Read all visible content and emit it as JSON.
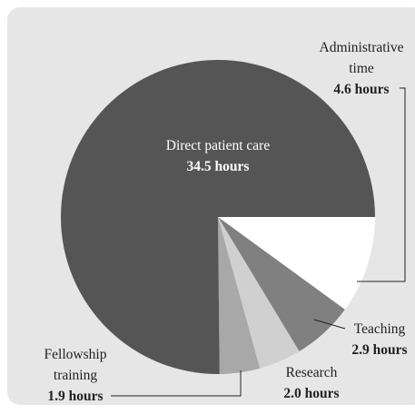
{
  "chart_data": {
    "type": "pie",
    "categories": [
      "Direct patient care",
      "Administrative time",
      "Teaching",
      "Research",
      "Fellowship training"
    ],
    "values": [
      34.5,
      4.6,
      2.9,
      2.0,
      1.9
    ],
    "value_labels": [
      "34.5 hours",
      "4.6 hours",
      "2.9 hours",
      "2.0 hours",
      "1.9 hours"
    ],
    "colors": [
      "#555555",
      "#ffffff",
      "#808080",
      "#d0d0d0",
      "#a8a8a8"
    ]
  }
}
